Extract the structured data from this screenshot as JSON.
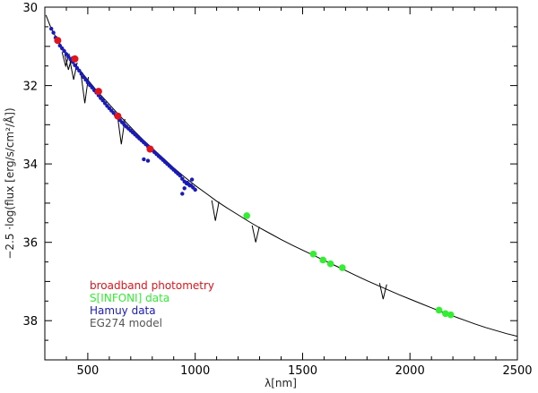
{
  "chart_data": {
    "type": "scatter",
    "title": "",
    "xlabel": "λ[nm]",
    "ylabel": "−2.5 ·log(flux [erg/s/cm²/Å])",
    "xlim": [
      300,
      2500
    ],
    "ylim": [
      30,
      39
    ],
    "y_inverted": true,
    "x_ticks": [
      500,
      1000,
      1500,
      2000,
      2500
    ],
    "y_ticks": [
      30,
      32,
      34,
      36,
      38
    ],
    "grid": false,
    "legend_position": "bottom-left",
    "colors": {
      "broadband": "#e0141c",
      "sinfoni": "#33ee33",
      "hamuy": "#1a1ab8",
      "model": "#000000"
    },
    "series": [
      {
        "name": "EG274 model",
        "kind": "line",
        "x": [
          305,
          330,
          360,
          390,
          420,
          450,
          480,
          510,
          540,
          570,
          600,
          640,
          680,
          720,
          760,
          800,
          850,
          900,
          950,
          1000,
          1050,
          1100,
          1150,
          1200,
          1250,
          1300,
          1350,
          1400,
          1450,
          1500,
          1550,
          1600,
          1650,
          1700,
          1750,
          1800,
          1850,
          1900,
          1950,
          2000,
          2050,
          2100,
          2150,
          2200,
          2250,
          2300,
          2350,
          2400,
          2450,
          2500
        ],
        "y": [
          30.2,
          30.55,
          30.85,
          31.1,
          31.32,
          31.52,
          31.72,
          31.92,
          32.12,
          32.3,
          32.48,
          32.72,
          32.95,
          33.18,
          33.4,
          33.6,
          33.85,
          34.1,
          34.33,
          34.55,
          34.75,
          34.95,
          35.13,
          35.3,
          35.47,
          35.63,
          35.78,
          35.93,
          36.07,
          36.2,
          36.33,
          36.46,
          36.59,
          36.72,
          36.85,
          36.98,
          37.1,
          37.22,
          37.34,
          37.45,
          37.56,
          37.67,
          37.78,
          37.88,
          37.98,
          38.08,
          38.17,
          38.25,
          38.33,
          38.4
        ]
      },
      {
        "name": "EG274 model absorption lines",
        "kind": "lines",
        "lines": [
          {
            "x": 397,
            "y_top": 31.15,
            "y_bottom": 31.5
          },
          {
            "x": 410,
            "y_top": 31.22,
            "y_bottom": 31.6
          },
          {
            "x": 434,
            "y_top": 31.38,
            "y_bottom": 31.85
          },
          {
            "x": 486,
            "y_top": 31.75,
            "y_bottom": 32.45
          },
          {
            "x": 656,
            "y_top": 32.82,
            "y_bottom": 33.5
          },
          {
            "x": 1094,
            "y_top": 34.93,
            "y_bottom": 35.45
          },
          {
            "x": 1282,
            "y_top": 35.57,
            "y_bottom": 36.0
          },
          {
            "x": 1875,
            "y_top": 37.04,
            "y_bottom": 37.45
          }
        ]
      },
      {
        "name": "Hamuy data",
        "kind": "scatter",
        "x": [
          330,
          340,
          350,
          360,
          370,
          380,
          390,
          400,
          410,
          420,
          430,
          440,
          450,
          460,
          470,
          480,
          490,
          500,
          510,
          520,
          530,
          540,
          550,
          560,
          570,
          580,
          590,
          600,
          610,
          620,
          630,
          640,
          650,
          660,
          670,
          680,
          690,
          700,
          710,
          720,
          730,
          740,
          750,
          760,
          770,
          780,
          790,
          800,
          810,
          820,
          830,
          840,
          850,
          860,
          870,
          880,
          890,
          900,
          910,
          920,
          930,
          940,
          950,
          960,
          970,
          980,
          990,
          1000,
          761,
          780,
          940,
          950,
          963,
          975,
          985
        ],
        "y": [
          30.55,
          30.65,
          30.78,
          30.88,
          30.98,
          31.05,
          31.12,
          31.2,
          31.26,
          31.33,
          31.4,
          31.48,
          31.55,
          31.62,
          31.7,
          31.78,
          31.85,
          31.92,
          31.99,
          32.05,
          32.12,
          32.18,
          32.25,
          32.32,
          32.38,
          32.45,
          32.52,
          32.58,
          32.64,
          32.7,
          32.76,
          32.82,
          32.88,
          32.94,
          33.0,
          33.05,
          33.1,
          33.15,
          33.2,
          33.25,
          33.3,
          33.35,
          33.4,
          33.45,
          33.5,
          33.55,
          33.6,
          33.65,
          33.7,
          33.75,
          33.8,
          33.85,
          33.9,
          33.95,
          34.0,
          34.05,
          34.1,
          34.15,
          34.2,
          34.25,
          34.3,
          34.38,
          34.45,
          34.5,
          34.52,
          34.55,
          34.6,
          34.66,
          33.88,
          33.92,
          34.76,
          34.62,
          34.48,
          34.55,
          34.4
        ]
      },
      {
        "name": "broadband photometry",
        "kind": "scatter",
        "x": [
          360,
          440,
          550,
          640,
          790
        ],
        "y": [
          30.85,
          31.32,
          32.15,
          32.78,
          33.62
        ]
      },
      {
        "name": "SINFONI data",
        "kind": "scatter",
        "x": [
          1240,
          1550,
          1595,
          1630,
          1685,
          2135,
          2165,
          2190
        ],
        "y": [
          35.32,
          36.3,
          36.45,
          36.55,
          36.65,
          37.73,
          37.82,
          37.85
        ]
      }
    ],
    "legend": [
      {
        "label": "broadband photometry",
        "color": "#e0141c"
      },
      {
        "label": "S[INFONI] data",
        "color": "#33ee33"
      },
      {
        "label": "Hamuy data",
        "color": "#1a1ab8"
      },
      {
        "label": "EG274 model",
        "color": "#555555"
      }
    ]
  }
}
